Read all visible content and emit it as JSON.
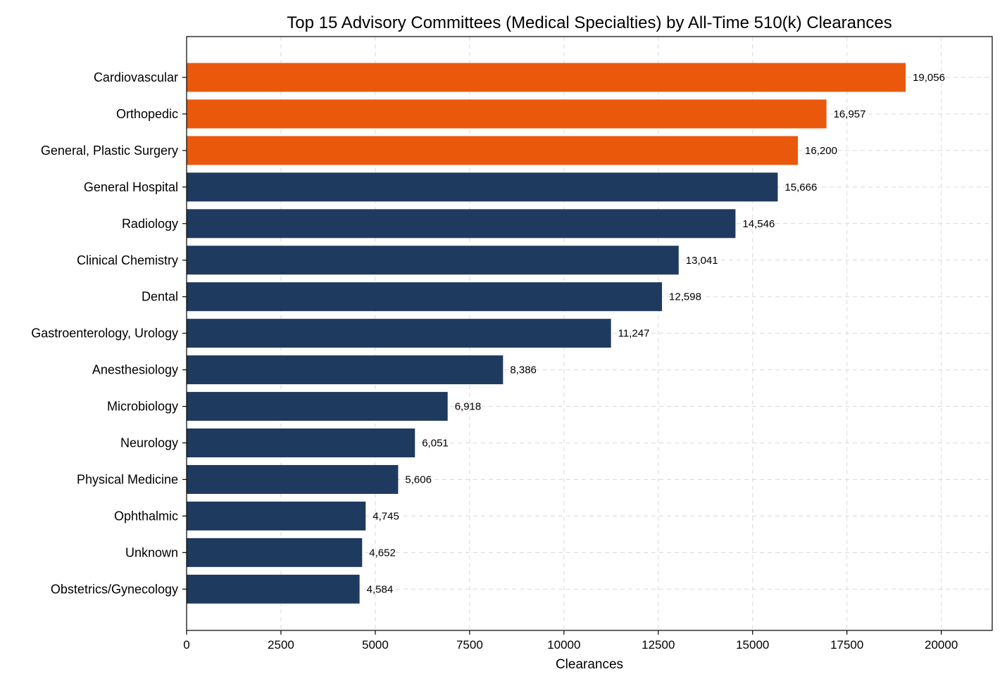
{
  "chart_data": {
    "type": "bar",
    "orientation": "horizontal",
    "title": "Top 15 Advisory Committees (Medical Specialties) by All-Time 510(k) Clearances",
    "xlabel": "Clearances",
    "ylabel": "",
    "xlim": [
      0,
      21350
    ],
    "xticks": [
      0,
      2500,
      5000,
      7500,
      10000,
      12500,
      15000,
      17500,
      20000
    ],
    "grid": true,
    "highlight_color": "#EA580C",
    "base_color": "#1E3A5F",
    "highlight_top_n": 3,
    "categories": [
      "Cardiovascular",
      "Orthopedic",
      "General, Plastic Surgery",
      "General Hospital",
      "Radiology",
      "Clinical Chemistry",
      "Dental",
      "Gastroenterology, Urology",
      "Anesthesiology",
      "Microbiology",
      "Neurology",
      "Physical Medicine",
      "Ophthalmic",
      "Unknown",
      "Obstetrics/Gynecology"
    ],
    "values": [
      19056,
      16957,
      16200,
      15666,
      14546,
      13041,
      12598,
      11247,
      8386,
      6918,
      6051,
      5606,
      4745,
      4652,
      4584
    ],
    "value_labels": [
      "19,056",
      "16,957",
      "16,200",
      "15,666",
      "14,546",
      "13,041",
      "12,598",
      "11,247",
      "8,386",
      "6,918",
      "6,051",
      "5,606",
      "4,745",
      "4,652",
      "4,584"
    ]
  }
}
